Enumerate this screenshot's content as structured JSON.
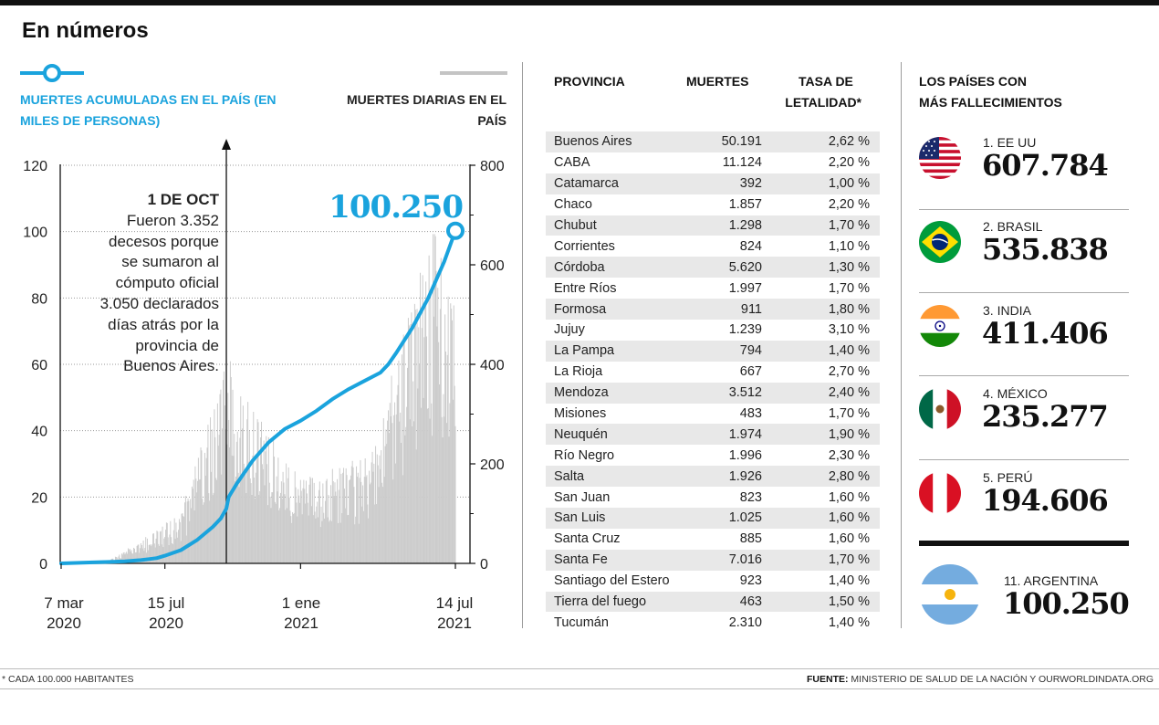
{
  "title": "En números",
  "chart_data": {
    "type": "line",
    "legend_line": "MUERTES ACUMULADAS EN EL PAÍS (EN MILES DE PERSONAS)",
    "legend_bars": "MUERTES DIARIAS EN EL PAÍS",
    "y_left_ticks": [
      "0",
      "20",
      "40",
      "60",
      "80",
      "100",
      "120"
    ],
    "y_right_ticks": [
      "0",
      "200",
      "400",
      "600",
      "800"
    ],
    "ylim_left": [
      0,
      120
    ],
    "ylim_right": [
      0,
      800
    ],
    "x_tick_labels": [
      {
        "line1": "7 mar",
        "line2": "2020"
      },
      {
        "line1": "15 jul",
        "line2": "2020"
      },
      {
        "line1": "1 ene",
        "line2": "2021"
      },
      {
        "line1": "14  jul",
        "line2": "2021"
      }
    ],
    "x_ticks_days": [
      0,
      130,
      300,
      494
    ],
    "x_range_days": [
      0,
      494
    ],
    "cumulative_series": {
      "name": "Muertes acumuladas (miles)",
      "days": [
        0,
        40,
        80,
        100,
        110,
        120,
        130,
        150,
        170,
        190,
        200,
        207,
        210,
        220,
        240,
        260,
        280,
        300,
        320,
        340,
        360,
        380,
        400,
        410,
        420,
        440,
        460,
        480,
        494
      ],
      "values": [
        0,
        0.3,
        0.6,
        1.0,
        1.3,
        1.6,
        2.3,
        4.0,
        7.0,
        11.0,
        13.5,
        16.5,
        20.0,
        24.0,
        31.0,
        36.5,
        40.5,
        43.0,
        46.0,
        49.5,
        52.5,
        55.0,
        57.5,
        60.0,
        63.5,
        71.0,
        80.0,
        91.0,
        100.25
      ]
    },
    "daily_series_note": "Barras grises: muertes diarias en el país",
    "final_value_label": "100.250",
    "annotation": {
      "heading": "1 DE OCT",
      "body": [
        "Fueron 3.352",
        "decesos porque",
        "se sumaron al",
        "cómputo oficial",
        "3.050 declarados",
        "días atrás por la",
        "provincia de",
        "Buenos Aires."
      ],
      "day": 207
    }
  },
  "table": {
    "headers": {
      "provincia": "PROVINCIA",
      "muertes": "MUERTES",
      "tasa_line1": "TASA DE",
      "tasa_line2": "LETALIDAD*"
    },
    "rows": [
      {
        "provincia": "Buenos Aires",
        "muertes": "50.191",
        "tasa": "2,62 %"
      },
      {
        "provincia": "CABA",
        "muertes": "11.124",
        "tasa": "2,20 %"
      },
      {
        "provincia": "Catamarca",
        "muertes": "392",
        "tasa": "1,00 %"
      },
      {
        "provincia": "Chaco",
        "muertes": "1.857",
        "tasa": "2,20 %"
      },
      {
        "provincia": "Chubut",
        "muertes": "1.298",
        "tasa": "1,70 %"
      },
      {
        "provincia": "Corrientes",
        "muertes": "824",
        "tasa": "1,10 %"
      },
      {
        "provincia": "Córdoba",
        "muertes": "5.620",
        "tasa": "1,30 %"
      },
      {
        "provincia": "Entre Ríos",
        "muertes": "1.997",
        "tasa": "1,70 %"
      },
      {
        "provincia": "Formosa",
        "muertes": "911",
        "tasa": "1,80 %"
      },
      {
        "provincia": "Jujuy",
        "muertes": "1.239",
        "tasa": "3,10 %"
      },
      {
        "provincia": "La Pampa",
        "muertes": "794",
        "tasa": "1,40 %"
      },
      {
        "provincia": "La Rioja",
        "muertes": "667",
        "tasa": "2,70 %"
      },
      {
        "provincia": "Mendoza",
        "muertes": "3.512",
        "tasa": "2,40 %"
      },
      {
        "provincia": "Misiones",
        "muertes": "483",
        "tasa": "1,70 %"
      },
      {
        "provincia": "Neuquén",
        "muertes": "1.974",
        "tasa": "1,90 %"
      },
      {
        "provincia": "Río Negro",
        "muertes": "1.996",
        "tasa": "2,30 %"
      },
      {
        "provincia": "Salta",
        "muertes": "1.926",
        "tasa": "2,80 %"
      },
      {
        "provincia": "San Juan",
        "muertes": "823",
        "tasa": "1,60 %"
      },
      {
        "provincia": "San Luis",
        "muertes": "1.025",
        "tasa": "1,60 %"
      },
      {
        "provincia": "Santa Cruz",
        "muertes": "885",
        "tasa": "1,60 %"
      },
      {
        "provincia": "Santa Fe",
        "muertes": "7.016",
        "tasa": "1,70 %"
      },
      {
        "provincia": "Santiago del Estero",
        "muertes": "923",
        "tasa": "1,40 %"
      },
      {
        "provincia": "Tierra del fuego",
        "muertes": "463",
        "tasa": "1,50 %"
      },
      {
        "provincia": "Tucumán",
        "muertes": "2.310",
        "tasa": "1,40 %"
      }
    ]
  },
  "countries": {
    "title_line1": "LOS PAÍSES CON",
    "title_line2": "MÁS FALLECIMIENTOS",
    "items": [
      {
        "rank": "1. EE UU",
        "value": "607.784",
        "flag": "usa-flag-icon"
      },
      {
        "rank": "2. BRASIL",
        "value": "535.838",
        "flag": "brazil-flag-icon"
      },
      {
        "rank": "3. INDIA",
        "value": "411.406",
        "flag": "india-flag-icon"
      },
      {
        "rank": "4. MÉXICO",
        "value": "235.277",
        "flag": "mexico-flag-icon"
      },
      {
        "rank": "5. PERÚ",
        "value": "194.606",
        "flag": "peru-flag-icon"
      },
      {
        "rank": "11. ARGENTINA",
        "value": "100.250",
        "flag": "argentina-flag-icon"
      }
    ]
  },
  "footer": {
    "note": "* CADA 100.000 HABITANTES",
    "source_label": "FUENTE:",
    "source_text": " MINISTERIO DE SALUD DE LA NACIÓN Y OURWORLDINDATA.ORG"
  },
  "colors": {
    "accent_blue": "#1aa3dd",
    "bars_gray": "#c8c8c8",
    "text": "#111111"
  }
}
